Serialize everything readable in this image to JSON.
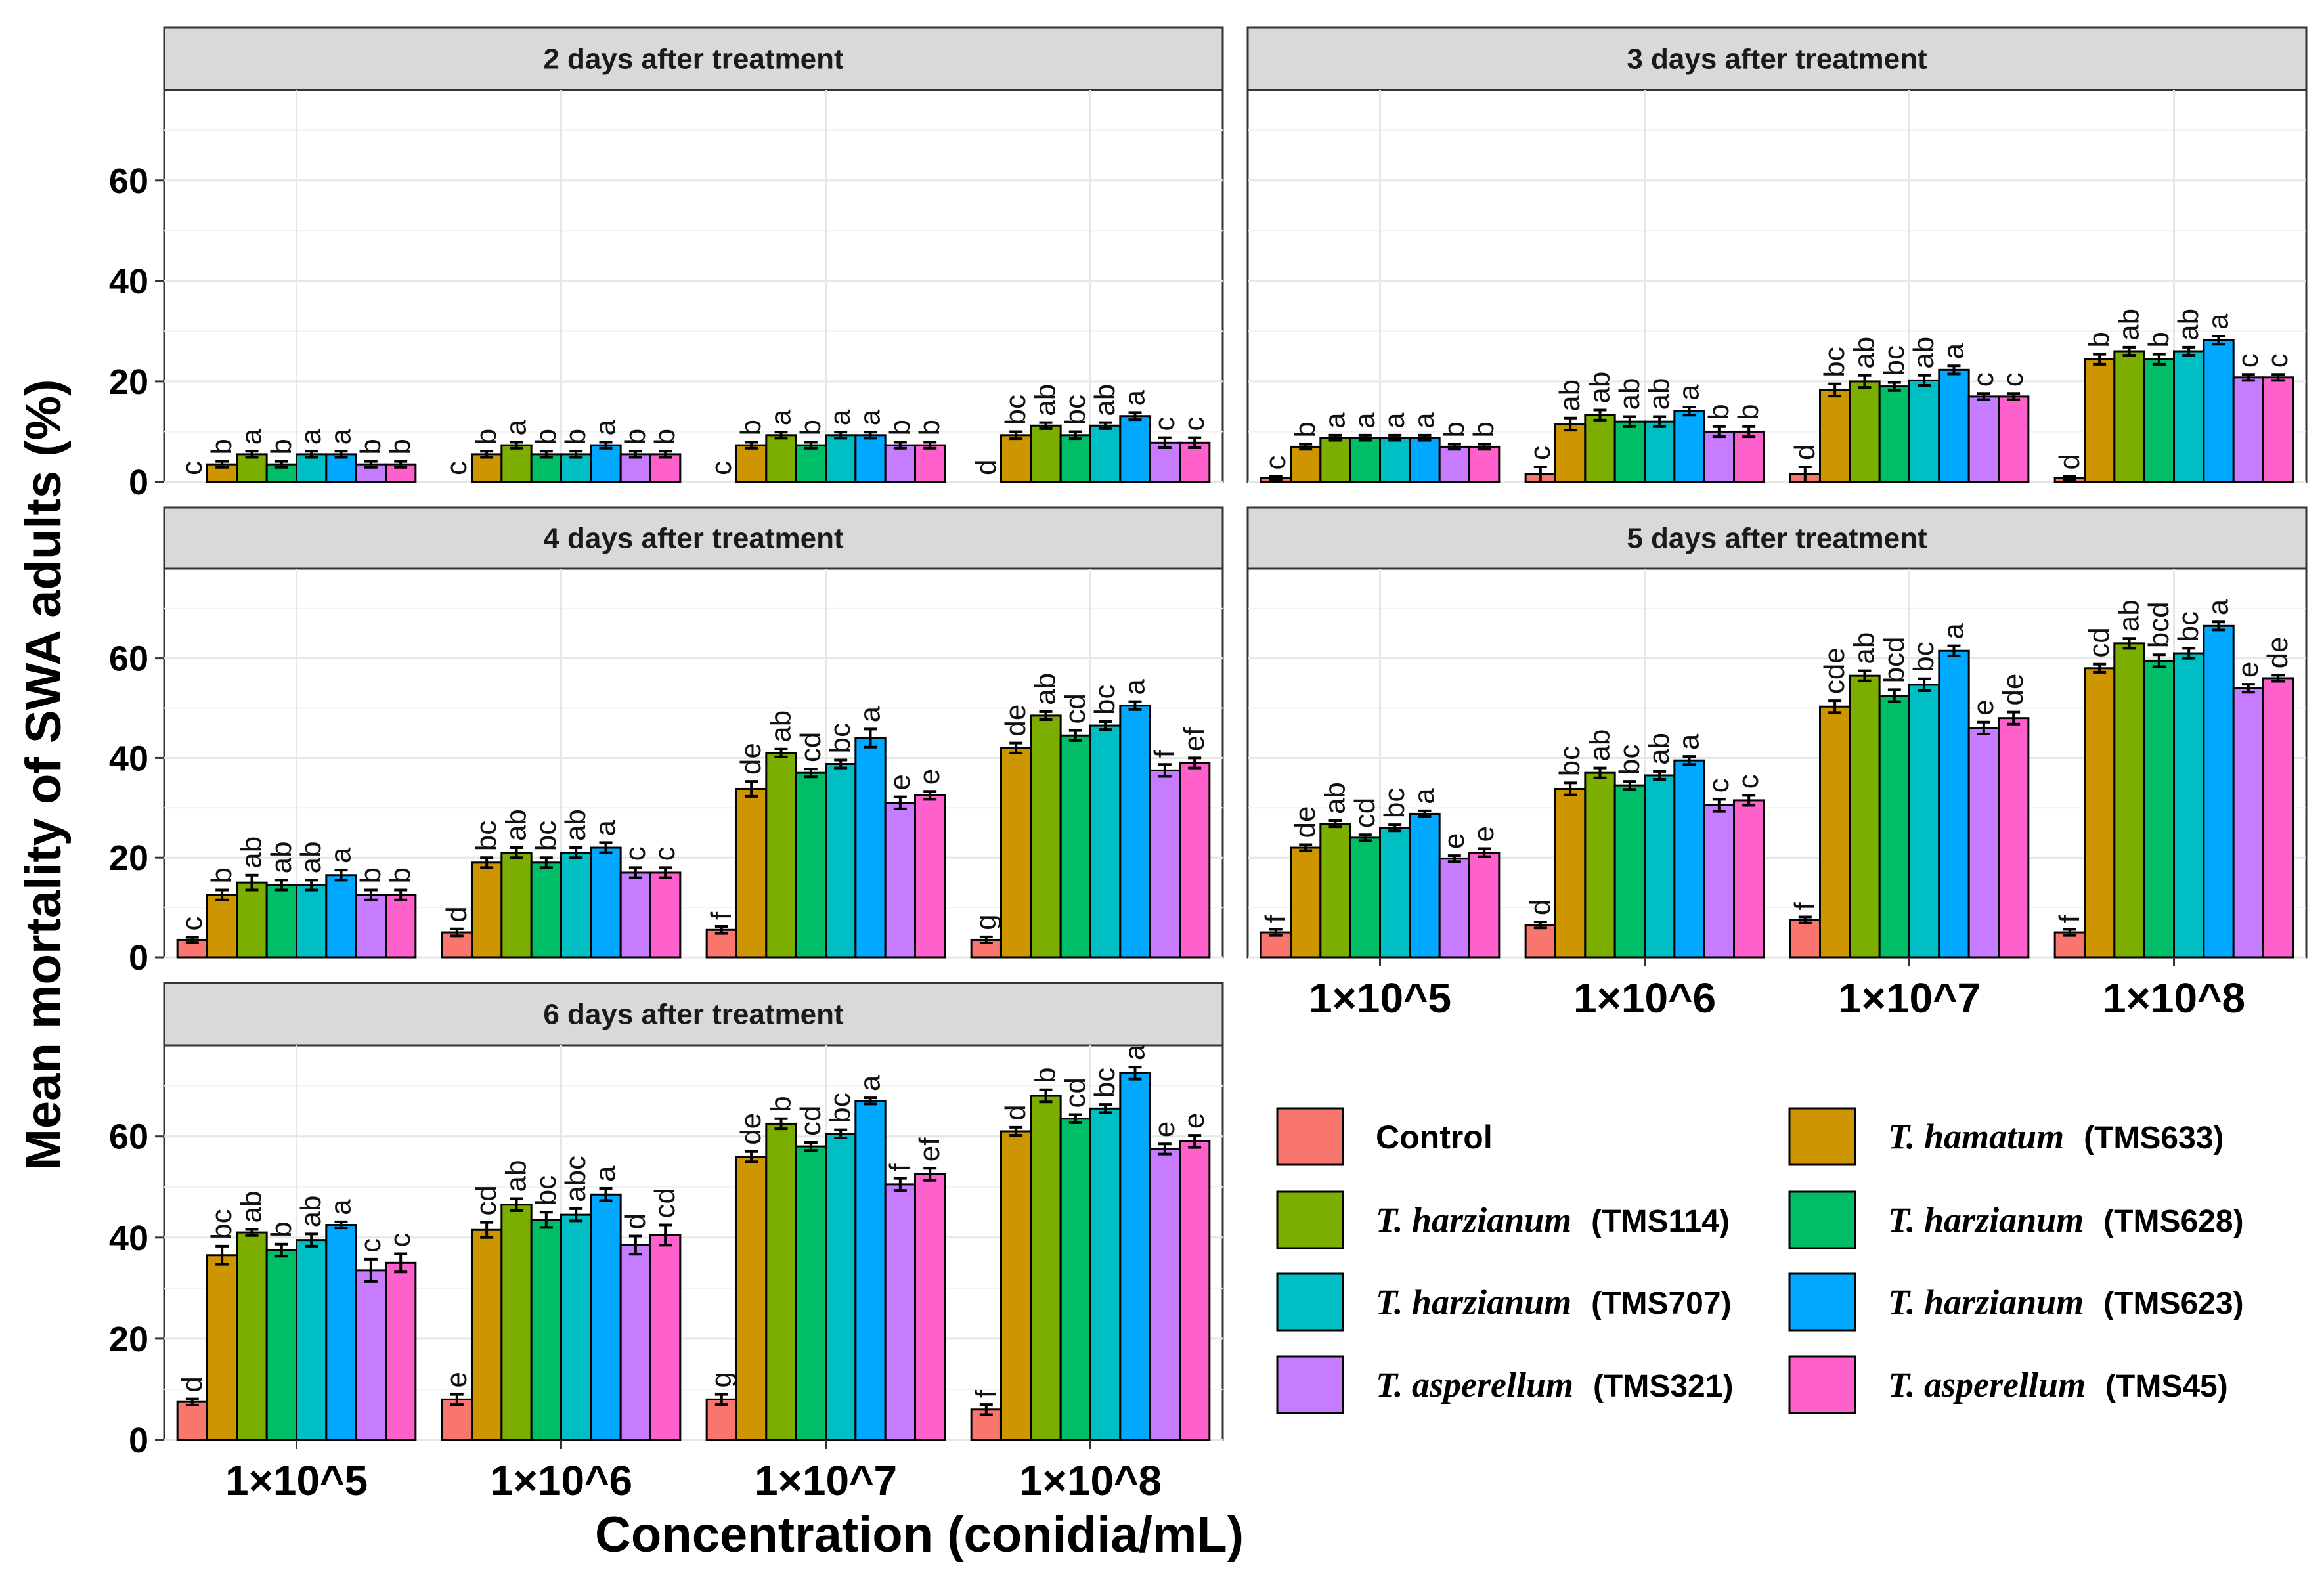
{
  "chart_data": {
    "type": "bar",
    "subtype": "faceted grouped bar with error bars",
    "ylabel": "Mean mortality of SWA adults (%)",
    "xlabel": "Concentration (conidia/mL)",
    "ylim": [
      0,
      78
    ],
    "yticks": [
      0,
      20,
      40,
      60
    ],
    "categories": [
      "1×10^5",
      "1×10^6",
      "1×10^7",
      "1×10^8"
    ],
    "series": [
      {
        "name": "Control",
        "color": "#F8766D"
      },
      {
        "name": "T. hamatum (TMS633)",
        "species": "T. hamatum",
        "strain": "(TMS633)",
        "color": "#CD9600"
      },
      {
        "name": "T. harzianum (TMS114)",
        "species": "T. harzianum",
        "strain": "(TMS114)",
        "color": "#7CAE00"
      },
      {
        "name": "T. harzianum (TMS628)",
        "species": "T. harzianum",
        "strain": "(TMS628)",
        "color": "#00BE67"
      },
      {
        "name": "T. harzianum (TMS707)",
        "species": "T. harzianum",
        "strain": "(TMS707)",
        "color": "#00BFC4"
      },
      {
        "name": "T. harzianum (TMS623)",
        "species": "T. harzianum",
        "strain": "(TMS623)",
        "color": "#00A9FF"
      },
      {
        "name": "T. asperellum (TMS321)",
        "species": "T. asperellum",
        "strain": "(TMS321)",
        "color": "#C77CFF"
      },
      {
        "name": "T. asperellum (TMS45)",
        "species": "T. asperellum",
        "strain": "(TMS45)",
        "color": "#FF61CC"
      }
    ],
    "legend": {
      "placement": "bottom-right",
      "order": [
        0,
        1,
        2,
        3,
        4,
        5,
        6,
        7
      ]
    },
    "panels": [
      {
        "title": "2 days after treatment",
        "values": [
          [
            0,
            3.5,
            5.5,
            3.5,
            5.5,
            5.5,
            3.5,
            3.5
          ],
          [
            0,
            5.5,
            7.3,
            5.5,
            5.5,
            7.3,
            5.5,
            5.5
          ],
          [
            0,
            7.3,
            9.3,
            7.3,
            9.3,
            9.3,
            7.3,
            7.3
          ],
          [
            0,
            9.3,
            11.2,
            9.3,
            11.2,
            13.1,
            7.8,
            7.8
          ]
        ],
        "errors": [
          [
            0,
            0.6,
            0.6,
            0.6,
            0.6,
            0.6,
            0.6,
            0.6
          ],
          [
            0,
            0.6,
            0.6,
            0.6,
            0.6,
            0.6,
            0.6,
            0.6
          ],
          [
            0,
            0.6,
            0.6,
            0.6,
            0.6,
            0.6,
            0.6,
            0.6
          ],
          [
            0,
            0.7,
            0.6,
            0.7,
            0.6,
            0.7,
            1.0,
            1.0
          ]
        ],
        "letters": [
          [
            "c",
            "b",
            "a",
            "b",
            "a",
            "a",
            "b",
            "b"
          ],
          [
            "c",
            "b",
            "a",
            "b",
            "b",
            "a",
            "b",
            "b"
          ],
          [
            "c",
            "b",
            "a",
            "b",
            "a",
            "a",
            "b",
            "b"
          ],
          [
            "d",
            "bc",
            "ab",
            "bc",
            "ab",
            "a",
            "c",
            "c"
          ]
        ]
      },
      {
        "title": "3 days after treatment",
        "values": [
          [
            0.8,
            7.0,
            8.8,
            8.8,
            8.8,
            8.8,
            7.0,
            7.0
          ],
          [
            1.5,
            11.5,
            13.3,
            12.0,
            12.0,
            14.1,
            10.0,
            10.0
          ],
          [
            1.5,
            18.3,
            20.0,
            19.0,
            20.2,
            22.3,
            17.0,
            17.0
          ],
          [
            0.8,
            24.4,
            26.0,
            24.4,
            26.0,
            28.2,
            20.8,
            20.8
          ]
        ],
        "errors": [
          [
            0.3,
            0.5,
            0.5,
            0.5,
            0.5,
            0.5,
            0.5,
            0.5
          ],
          [
            1.5,
            1.2,
            1.0,
            1.0,
            1.0,
            0.8,
            1.0,
            1.0
          ],
          [
            1.5,
            1.2,
            1.2,
            0.8,
            1.0,
            0.8,
            0.6,
            0.6
          ],
          [
            0.3,
            1.0,
            0.8,
            1.0,
            0.8,
            0.8,
            0.6,
            0.6
          ]
        ],
        "letters": [
          [
            "c",
            "b",
            "a",
            "a",
            "a",
            "a",
            "b",
            "b"
          ],
          [
            "c",
            "ab",
            "ab",
            "ab",
            "ab",
            "a",
            "b",
            "b"
          ],
          [
            "d",
            "bc",
            "ab",
            "bc",
            "ab",
            "a",
            "c",
            "c"
          ],
          [
            "d",
            "b",
            "ab",
            "b",
            "ab",
            "a",
            "c",
            "c"
          ]
        ]
      },
      {
        "title": "4 days after treatment",
        "values": [
          [
            3.5,
            12.5,
            15.0,
            14.5,
            14.5,
            16.5,
            12.5,
            12.5
          ],
          [
            5.0,
            19.0,
            21.0,
            19.0,
            21.0,
            22.0,
            17.0,
            17.0
          ],
          [
            5.5,
            33.8,
            41.0,
            37.0,
            38.8,
            44.0,
            31.0,
            32.5
          ],
          [
            3.5,
            42.0,
            48.5,
            44.5,
            46.5,
            50.5,
            37.5,
            39.0
          ]
        ],
        "errors": [
          [
            0.5,
            1.0,
            1.5,
            1.0,
            1.0,
            1.0,
            1.0,
            1.0
          ],
          [
            0.7,
            1.0,
            1.0,
            1.0,
            1.0,
            1.0,
            1.0,
            1.0
          ],
          [
            0.7,
            1.5,
            0.8,
            0.8,
            0.8,
            1.8,
            1.2,
            0.8
          ],
          [
            0.6,
            1.0,
            0.8,
            1.0,
            0.8,
            0.8,
            1.2,
            1.0
          ]
        ],
        "letters": [
          [
            "c",
            "b",
            "ab",
            "ab",
            "ab",
            "a",
            "b",
            "b"
          ],
          [
            "d",
            "bc",
            "ab",
            "bc",
            "ab",
            "a",
            "c",
            "c"
          ],
          [
            "f",
            "de",
            "ab",
            "cd",
            "bc",
            "a",
            "e",
            "e"
          ],
          [
            "g",
            "de",
            "ab",
            "cd",
            "bc",
            "a",
            "f",
            "ef"
          ]
        ]
      },
      {
        "title": "5 days after treatment",
        "values": [
          [
            5.0,
            22.0,
            26.8,
            24.0,
            26.0,
            28.8,
            19.8,
            21.0
          ],
          [
            6.5,
            33.8,
            37.0,
            34.5,
            36.5,
            39.5,
            30.5,
            31.5
          ],
          [
            7.5,
            50.3,
            56.5,
            52.5,
            54.7,
            61.5,
            46.0,
            48.0
          ],
          [
            5.0,
            58.0,
            63.0,
            59.5,
            61.0,
            66.5,
            54.0,
            56.0
          ]
        ],
        "errors": [
          [
            0.6,
            0.6,
            0.6,
            0.6,
            0.6,
            0.6,
            0.6,
            0.8
          ],
          [
            0.6,
            1.2,
            1.0,
            0.8,
            0.8,
            0.8,
            1.2,
            1.0
          ],
          [
            0.6,
            1.2,
            1.0,
            1.2,
            1.2,
            1.0,
            1.2,
            1.2
          ],
          [
            0.6,
            0.8,
            1.0,
            1.2,
            1.0,
            0.8,
            0.8,
            0.6
          ]
        ],
        "letters": [
          [
            "f",
            "de",
            "ab",
            "cd",
            "bc",
            "a",
            "e",
            "e"
          ],
          [
            "d",
            "bc",
            "ab",
            "bc",
            "ab",
            "a",
            "c",
            "c"
          ],
          [
            "f",
            "cde",
            "ab",
            "bcd",
            "bc",
            "a",
            "e",
            "de"
          ],
          [
            "f",
            "cd",
            "ab",
            "bcd",
            "bc",
            "a",
            "e",
            "de"
          ]
        ]
      },
      {
        "title": "6 days after treatment",
        "values": [
          [
            7.5,
            36.5,
            41.0,
            37.5,
            39.5,
            42.5,
            33.5,
            35.0
          ],
          [
            8.0,
            41.5,
            46.5,
            43.5,
            44.5,
            48.5,
            38.5,
            40.5
          ],
          [
            8.0,
            56.0,
            62.5,
            58.0,
            60.5,
            67.0,
            50.5,
            52.5
          ],
          [
            6.0,
            61.0,
            68.0,
            63.5,
            65.5,
            72.5,
            57.5,
            59.0
          ]
        ],
        "errors": [
          [
            0.6,
            1.8,
            0.6,
            1.2,
            1.2,
            0.6,
            2.2,
            1.8
          ],
          [
            1.0,
            1.5,
            1.2,
            1.5,
            1.2,
            1.2,
            1.8,
            2.0
          ],
          [
            1.0,
            1.0,
            1.0,
            0.8,
            0.8,
            0.6,
            1.2,
            1.2
          ],
          [
            1.0,
            0.8,
            1.2,
            0.8,
            0.8,
            1.2,
            1.0,
            1.2
          ]
        ],
        "letters": [
          [
            "d",
            "bc",
            "ab",
            "b",
            "ab",
            "a",
            "c",
            "c"
          ],
          [
            "e",
            "cd",
            "ab",
            "bc",
            "abc",
            "a",
            "d",
            "cd"
          ],
          [
            "g",
            "de",
            "b",
            "cd",
            "bc",
            "a",
            "f",
            "ef"
          ],
          [
            "f",
            "d",
            "b",
            "cd",
            "bc",
            "a",
            "e",
            "e"
          ]
        ]
      }
    ]
  }
}
